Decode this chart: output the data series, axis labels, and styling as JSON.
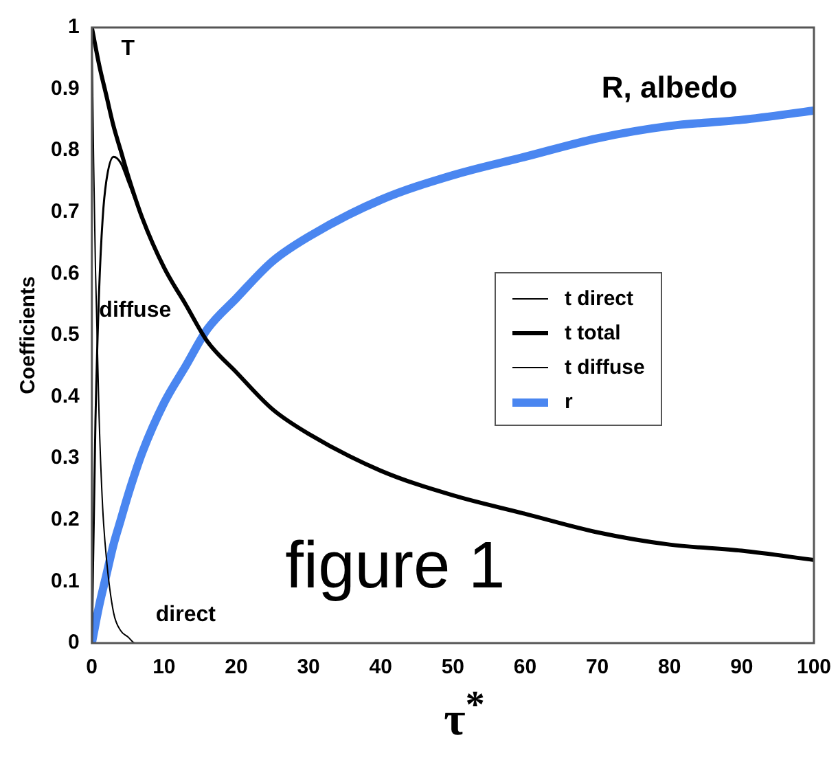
{
  "chart_data": {
    "type": "line",
    "xlabel": "τ$^{*}$",
    "ylabel": "Coefficients",
    "xlim": [
      0,
      100
    ],
    "xticks": [
      0,
      10,
      20,
      30,
      40,
      50,
      60,
      70,
      80,
      90,
      100
    ],
    "ylim": [
      0,
      1
    ],
    "yticks": [
      0,
      0.1,
      0.2,
      0.3,
      0.4,
      0.5,
      0.6,
      0.7,
      0.8,
      0.9,
      1
    ],
    "grid": false,
    "legend": "right",
    "marker": "none",
    "line_style": "solid",
    "series": [
      {
        "name": "t direct",
        "color": "#000000",
        "x": [
          0,
          0.25,
          0.5,
          1,
          1.5,
          2,
          3,
          4,
          5,
          6,
          8,
          10
        ],
        "values": [
          1,
          0.78,
          0.61,
          0.37,
          0.22,
          0.14,
          0.05,
          0.02,
          0.01,
          0,
          0,
          0
        ]
      },
      {
        "name": "t total",
        "color": "#000000",
        "x": [
          0,
          1,
          2,
          3,
          4,
          5,
          7,
          10,
          13,
          16,
          20,
          25,
          30,
          40,
          50,
          60,
          70,
          80,
          90,
          100
        ],
        "values": [
          1,
          0.94,
          0.89,
          0.84,
          0.8,
          0.76,
          0.69,
          0.61,
          0.55,
          0.49,
          0.44,
          0.38,
          0.34,
          0.28,
          0.24,
          0.21,
          0.18,
          0.16,
          0.15,
          0.135
        ]
      },
      {
        "name": "t diffuse",
        "color": "#000000",
        "x": [
          0,
          0.5,
          1,
          1.5,
          2,
          3,
          4,
          5,
          7,
          10
        ],
        "values": [
          0,
          0.36,
          0.57,
          0.69,
          0.75,
          0.79,
          0.78,
          0.75,
          0.69,
          0.61
        ]
      },
      {
        "name": "r",
        "color": "#4a86f0",
        "x": [
          0,
          1,
          2,
          3,
          4,
          5,
          7,
          10,
          13,
          16,
          20,
          25,
          30,
          40,
          50,
          60,
          70,
          80,
          90,
          100
        ],
        "values": [
          0,
          0.06,
          0.11,
          0.16,
          0.2,
          0.24,
          0.31,
          0.39,
          0.45,
          0.51,
          0.56,
          0.62,
          0.66,
          0.72,
          0.76,
          0.79,
          0.82,
          0.84,
          0.85,
          0.865
        ]
      }
    ],
    "annotations": [
      "T",
      "R, albedo",
      "diffuse",
      "direct",
      "figure 1"
    ]
  }
}
